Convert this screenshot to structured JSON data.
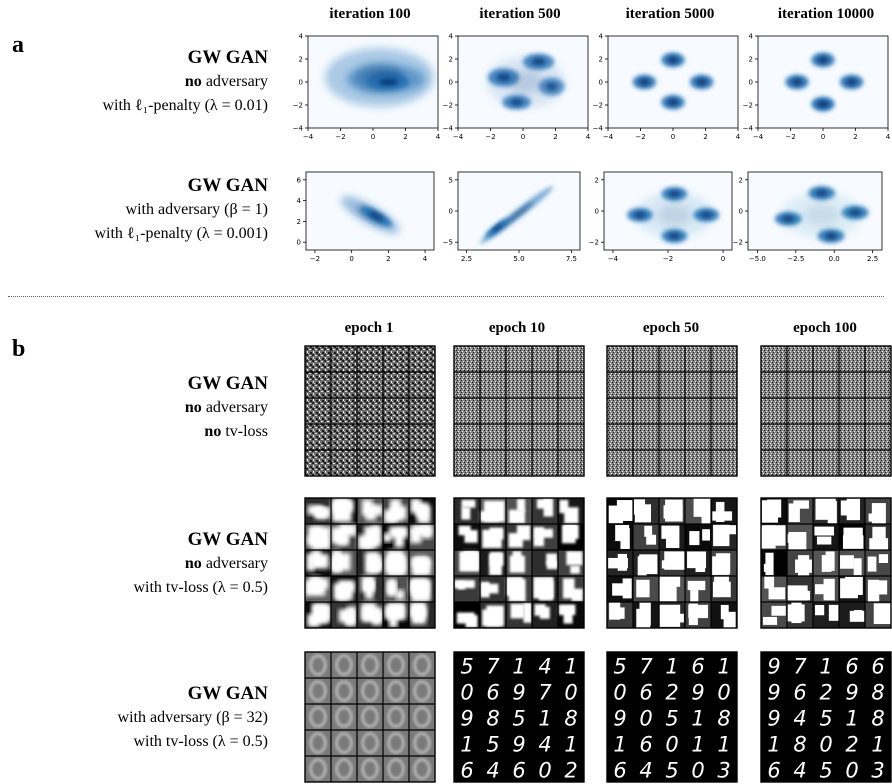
{
  "panels": {
    "a": "a",
    "b": "b"
  },
  "section_a": {
    "columns": [
      "iteration 100",
      "iteration 500",
      "iteration 5000",
      "iteration 10000"
    ],
    "rows": [
      {
        "title": "GW GAN",
        "lines": [
          {
            "bold": "no",
            "text": " adversary"
          },
          {
            "bold": "",
            "text": "with ℓ₁-penalty (λ = 0.01)"
          }
        ]
      },
      {
        "title": "GW GAN",
        "lines": [
          {
            "bold": "",
            "text": "with adversary (β = 1)"
          },
          {
            "bold": "",
            "text": "with ℓ₁-penalty (λ = 0.001)"
          }
        ]
      }
    ],
    "plots": [
      [
        {
          "xticks": [
            "−4",
            "−2",
            "0",
            "2",
            "4"
          ],
          "yticks": [
            "4",
            "2",
            "0",
            "−2",
            "−4"
          ]
        },
        {
          "xticks": [
            "−4",
            "−2",
            "0",
            "2",
            "4"
          ],
          "yticks": [
            "4",
            "2",
            "0",
            "−2",
            "−4"
          ]
        },
        {
          "xticks": [
            "−4",
            "−2",
            "0",
            "2",
            "4"
          ],
          "yticks": [
            "4",
            "2",
            "0",
            "−2",
            "−4"
          ]
        },
        {
          "xticks": [
            "−4",
            "−2",
            "0",
            "2",
            "4"
          ],
          "yticks": [
            "4",
            "2",
            "0",
            "−2",
            "−4"
          ]
        }
      ],
      [
        {
          "xticks": [
            "−2",
            "0",
            "2",
            "4"
          ],
          "yticks": [
            "6",
            "4",
            "2",
            "0"
          ]
        },
        {
          "xticks": [
            "2.5",
            "5.0",
            "7.5"
          ],
          "yticks": [
            "5",
            "0",
            "−5"
          ]
        },
        {
          "xticks": [
            "−4",
            "−2",
            "0"
          ],
          "yticks": [
            "2",
            "0",
            "−2"
          ]
        },
        {
          "xticks": [
            "−5.0",
            "−2.5",
            "0.0",
            "2.5"
          ],
          "yticks": [
            "2",
            "0",
            "−2"
          ]
        }
      ]
    ]
  },
  "section_b": {
    "columns": [
      "epoch 1",
      "epoch 10",
      "epoch 50",
      "epoch 100"
    ],
    "rows": [
      {
        "title": "GW GAN",
        "lines": [
          {
            "bold": "no",
            "text": " adversary"
          },
          {
            "bold": "no",
            "text": " tv-loss"
          }
        ]
      },
      {
        "title": "GW GAN",
        "lines": [
          {
            "bold": "no",
            "text": " adversary"
          },
          {
            "bold": "",
            "text": "with tv-loss (λ = 0.5)"
          }
        ]
      },
      {
        "title": "GW GAN",
        "lines": [
          {
            "bold": "",
            "text": "with adversary (β = 32)"
          },
          {
            "bold": "",
            "text": "with tv-loss (λ = 0.5)"
          }
        ]
      }
    ],
    "digits": {
      "epoch10": [
        "5",
        "7",
        "1",
        "4",
        "1",
        "0",
        "6",
        "9",
        "7",
        "0",
        "9",
        "8",
        "5",
        "1",
        "8",
        "1",
        "5",
        "9",
        "4",
        "1",
        "6",
        "4",
        "6",
        "0",
        "2"
      ],
      "epoch50": [
        "5",
        "7",
        "1",
        "6",
        "1",
        "0",
        "6",
        "2",
        "9",
        "0",
        "9",
        "0",
        "5",
        "1",
        "8",
        "1",
        "6",
        "0",
        "1",
        "1",
        "6",
        "4",
        "5",
        "0",
        "3"
      ],
      "epoch100": [
        "9",
        "7",
        "1",
        "6",
        "6",
        "9",
        "6",
        "2",
        "9",
        "8",
        "9",
        "4",
        "5",
        "1",
        "8",
        "1",
        "8",
        "0",
        "2",
        "1",
        "6",
        "4",
        "5",
        "0",
        "3"
      ]
    }
  },
  "colors": {
    "kde_dark": "#08306b",
    "kde_mid": "#2171b5",
    "kde_light": "#c6dbef",
    "plot_bg": "#f7fbff"
  }
}
